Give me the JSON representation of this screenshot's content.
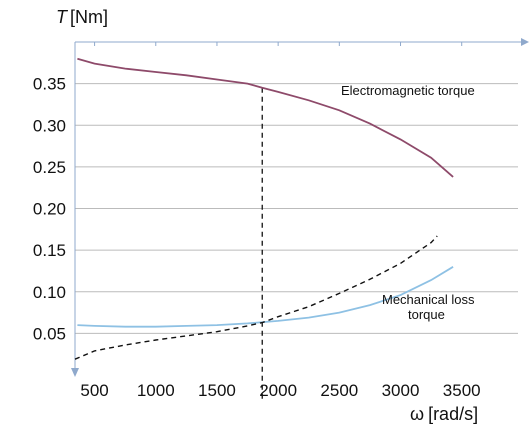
{
  "chart_data": {
    "type": "line",
    "ylabel_symbol": "T",
    "ylabel_unit": "[Nm]",
    "xlabel_symbol": "ω",
    "xlabel_unit": "[rad/s]",
    "xlim": [
      340,
      3960
    ],
    "ylim": [
      0.0,
      0.4
    ],
    "x_ticks": [
      500,
      1000,
      1500,
      2000,
      2500,
      3000,
      3500
    ],
    "y_ticks": [
      0.05,
      0.1,
      0.15,
      0.2,
      0.25,
      0.3,
      0.35
    ],
    "y_tick_labels": [
      "0.05",
      "0.10",
      "0.15",
      "0.20",
      "0.25",
      "0.30",
      "0.35"
    ],
    "grid": "horizontal",
    "colors": {
      "electromagnetic": "#8e4a6a",
      "mechanical": "#8ec1e4",
      "dashed": "#111111",
      "grid": "#bbbbbb",
      "axis_arrow": "#8fa9cc"
    },
    "series": [
      {
        "key": "electromagnetic",
        "style": "solid",
        "label_line1": "Electromagnetic torque",
        "label_line2": "",
        "x": [
          360,
          500,
          750,
          1000,
          1250,
          1500,
          1750,
          1870,
          2000,
          2250,
          2500,
          2750,
          3000,
          3250,
          3430
        ],
        "y": [
          0.38,
          0.374,
          0.368,
          0.364,
          0.36,
          0.355,
          0.35,
          0.345,
          0.34,
          0.33,
          0.318,
          0.302,
          0.283,
          0.261,
          0.238
        ]
      },
      {
        "key": "mechanical",
        "style": "solid",
        "label_line1": "Mechanical loss",
        "label_line2": "torque",
        "x": [
          360,
          500,
          750,
          1000,
          1250,
          1500,
          1750,
          2000,
          2250,
          2500,
          2750,
          3000,
          3250,
          3430
        ],
        "y": [
          0.06,
          0.059,
          0.058,
          0.058,
          0.059,
          0.06,
          0.062,
          0.065,
          0.069,
          0.075,
          0.084,
          0.096,
          0.114,
          0.13
        ]
      },
      {
        "key": "dashed",
        "style": "dashed",
        "label_line1": "",
        "label_line2": "",
        "x": [
          340,
          500,
          750,
          1000,
          1250,
          1500,
          1750,
          1870,
          2000,
          2250,
          2500,
          2750,
          3000,
          3250,
          3300
        ],
        "y": [
          0.019,
          0.029,
          0.036,
          0.042,
          0.047,
          0.052,
          0.059,
          0.063,
          0.07,
          0.082,
          0.098,
          0.115,
          0.134,
          0.159,
          0.167
        ]
      }
    ],
    "vertical_marker": {
      "x": 1870,
      "y_top": 0.345,
      "style": "dashed"
    }
  }
}
